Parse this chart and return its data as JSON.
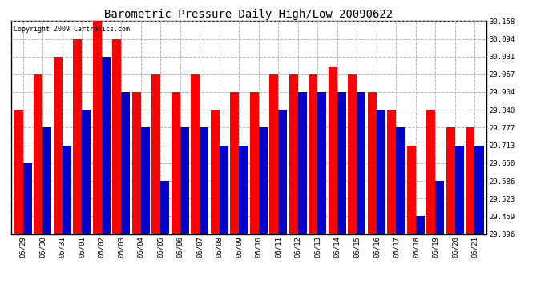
{
  "title": "Barometric Pressure Daily High/Low 20090622",
  "copyright": "Copyright 2009 Cartronics.com",
  "dates": [
    "05/29",
    "05/30",
    "05/31",
    "06/01",
    "06/02",
    "06/03",
    "06/04",
    "06/05",
    "06/06",
    "06/07",
    "06/08",
    "06/09",
    "06/10",
    "06/11",
    "06/12",
    "06/13",
    "06/14",
    "06/15",
    "06/16",
    "06/17",
    "06/18",
    "06/19",
    "06/20",
    "06/21"
  ],
  "highs": [
    29.84,
    29.967,
    30.031,
    30.094,
    30.158,
    30.094,
    29.904,
    29.967,
    29.904,
    29.967,
    29.84,
    29.904,
    29.904,
    29.967,
    29.967,
    29.967,
    29.994,
    29.967,
    29.904,
    29.84,
    29.713,
    29.84,
    29.777,
    29.777
  ],
  "lows": [
    29.65,
    29.777,
    29.713,
    29.84,
    30.031,
    29.904,
    29.777,
    29.586,
    29.777,
    29.777,
    29.713,
    29.713,
    29.777,
    29.84,
    29.904,
    29.904,
    29.904,
    29.904,
    29.84,
    29.777,
    29.459,
    29.586,
    29.713,
    29.713
  ],
  "bar_high_color": "#ff0000",
  "bar_low_color": "#0000cc",
  "background_color": "#ffffff",
  "plot_bg_color": "#ffffff",
  "grid_color": "#b0b0b0",
  "title_fontsize": 10,
  "tick_fontsize": 6.5,
  "copyright_fontsize": 6,
  "ymin": 29.396,
  "ymax": 30.158,
  "yticks": [
    29.396,
    29.459,
    29.523,
    29.586,
    29.65,
    29.713,
    29.777,
    29.84,
    29.904,
    29.967,
    30.031,
    30.094,
    30.158
  ]
}
